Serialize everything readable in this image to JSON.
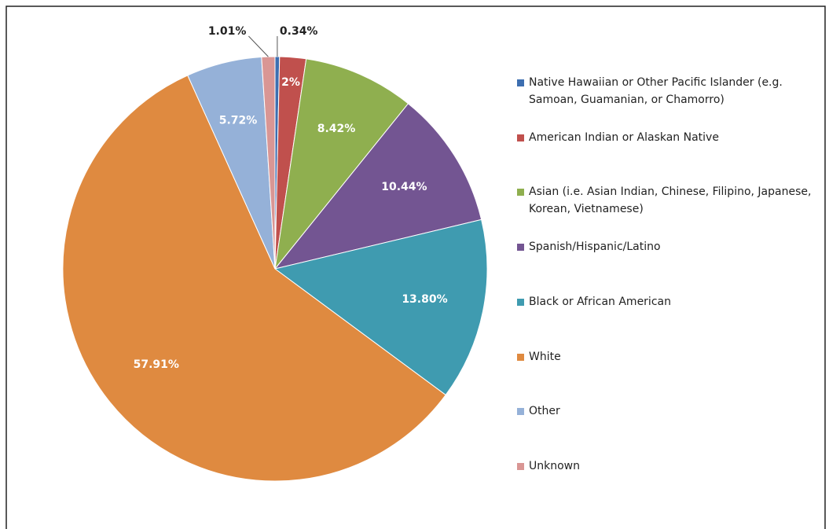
{
  "chart_data": {
    "type": "pie",
    "categories": [
      "Native Hawaiian or Other Pacific Islander (e.g. Samoan, Guamanian, or Chamorro)",
      "American Indian or Alaskan Native",
      "Asian (i.e. Asian Indian, Chinese, Filipino, Japanese, Korean, Vietnamese)",
      "Spanish/Hispanic/Latino",
      "Black or African American",
      "White",
      "Other",
      "Unknown"
    ],
    "values": [
      0.34,
      2,
      8.42,
      10.44,
      13.8,
      57.91,
      5.72,
      1.01
    ],
    "value_labels": [
      "0.34%",
      "2%",
      "8.42%",
      "10.44%",
      "13.80%",
      "57.91%",
      "5.72%",
      "1.01%"
    ],
    "colors": [
      "#3d6eb0",
      "#c0504d",
      "#8faf4f",
      "#735592",
      "#3f9bb0",
      "#df8a40",
      "#95b1d8",
      "#d99694"
    ],
    "legend": "right"
  }
}
